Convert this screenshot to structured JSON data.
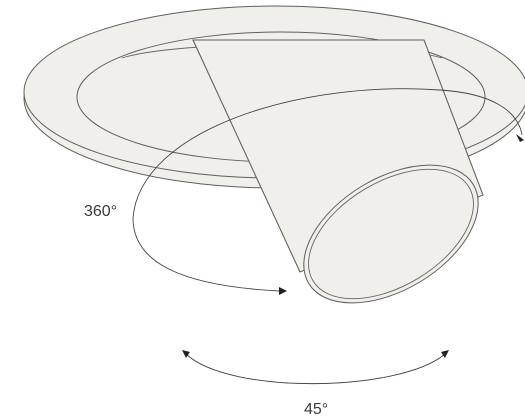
{
  "diagram": {
    "labels": {
      "rotation_horizontal": "360°",
      "tilt_angle": "45°"
    },
    "colors": {
      "fixture_fill": "#f1efeb",
      "line": "#5f5f5f",
      "arrow": "#222222",
      "text": "#3a3a3a"
    }
  }
}
